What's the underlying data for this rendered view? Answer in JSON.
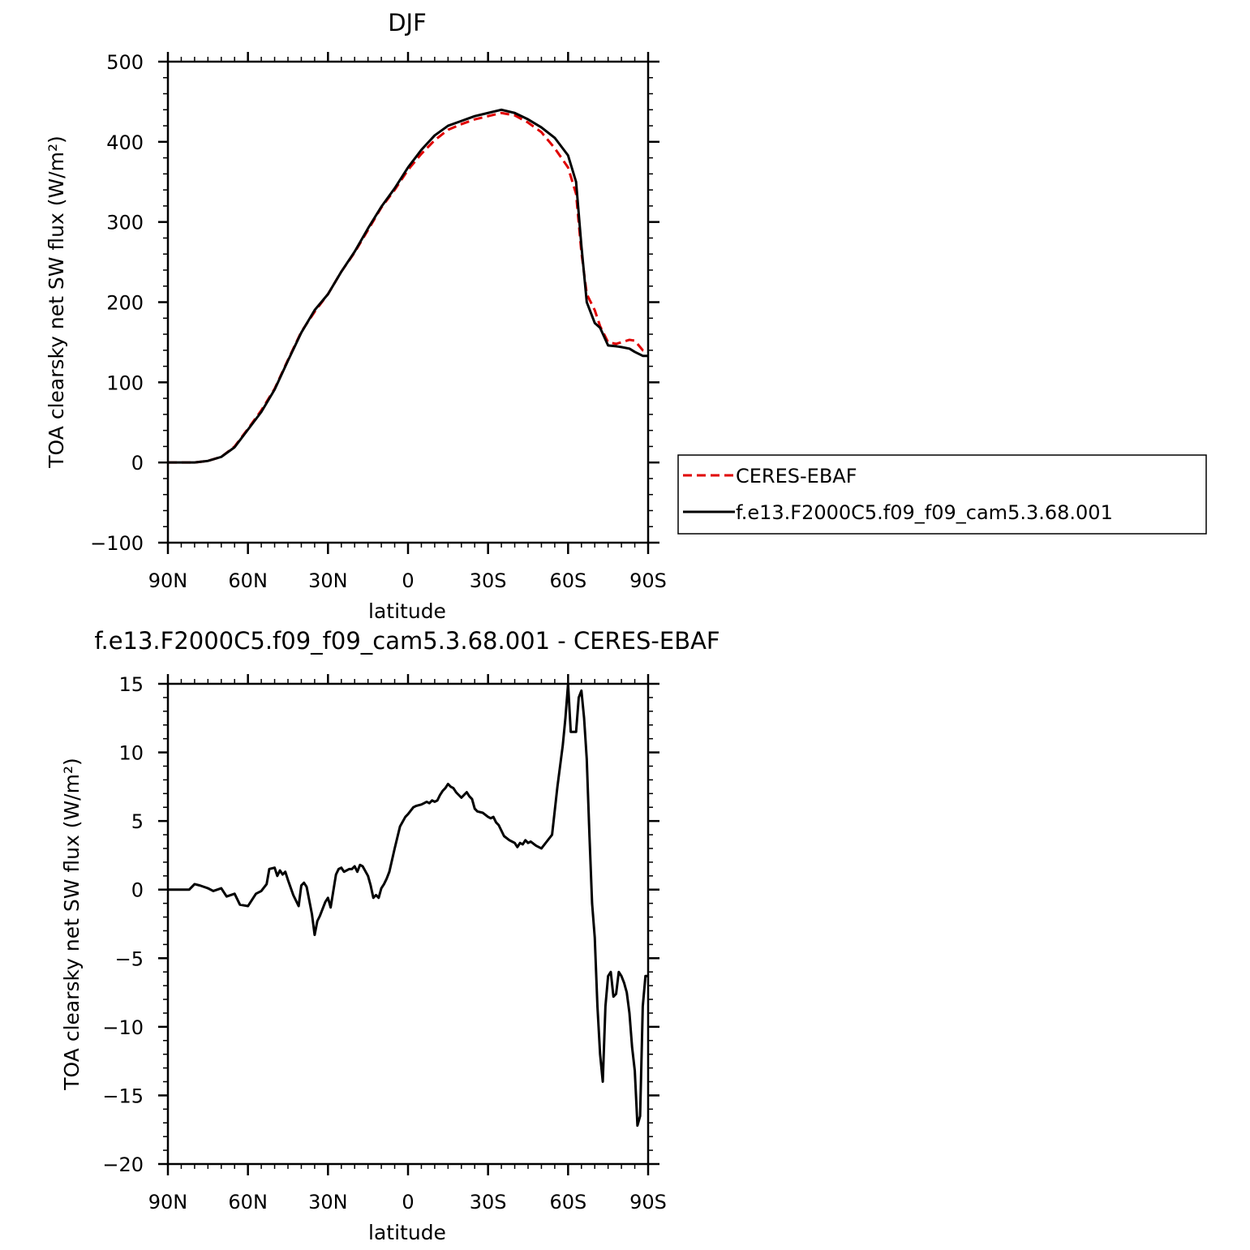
{
  "chart_data": [
    {
      "type": "line",
      "title": "DJF",
      "xlabel": "latitude",
      "ylabel": "TOA clearsky net SW flux (W/m²)",
      "ylim": [
        -100,
        500
      ],
      "yticks": [
        -100,
        0,
        100,
        200,
        300,
        400,
        500
      ],
      "xlim": [
        90,
        -90
      ],
      "xticks": [
        90,
        60,
        30,
        0,
        -30,
        -60,
        -90
      ],
      "xticklabels": [
        "90N",
        "60N",
        "30N",
        "0",
        "30S",
        "60S",
        "90S"
      ],
      "grid": false,
      "legend_position": "right",
      "x": [
        90,
        85,
        80,
        75,
        70,
        65,
        60,
        55,
        50,
        45,
        40,
        35,
        30,
        25,
        20,
        15,
        10,
        5,
        0,
        -5,
        -10,
        -15,
        -20,
        -25,
        -30,
        -35,
        -40,
        -45,
        -50,
        -55,
        -60,
        -63,
        -65,
        -67,
        -70,
        -72,
        -75,
        -78,
        -80,
        -83,
        -85,
        -88,
        -90
      ],
      "series": [
        {
          "name": "CERES-EBAF",
          "color": "#e00000",
          "dash": "dashed",
          "values": [
            0,
            0,
            0,
            2,
            7,
            20,
            42,
            65,
            92,
            128,
            163,
            188,
            210,
            238,
            262,
            290,
            318,
            340,
            365,
            385,
            402,
            415,
            422,
            428,
            432,
            436,
            433,
            424,
            412,
            392,
            368,
            335,
            262,
            210,
            190,
            170,
            150,
            148,
            150,
            153,
            152,
            140,
            138
          ]
        },
        {
          "name": "f.e13.F2000C5.f09_f09_cam5.3.68.001",
          "color": "#000000",
          "dash": "solid",
          "values": [
            0,
            0,
            0,
            2,
            7,
            19,
            41,
            63,
            91,
            127,
            162,
            190,
            210,
            238,
            263,
            292,
            319,
            342,
            368,
            390,
            408,
            420,
            426,
            432,
            436,
            440,
            436,
            428,
            418,
            405,
            383,
            350,
            270,
            200,
            174,
            168,
            146,
            145,
            144,
            142,
            138,
            133,
            133
          ]
        }
      ]
    },
    {
      "type": "line",
      "title": "f.e13.F2000C5.f09_f09_cam5.3.68.001 - CERES-EBAF",
      "xlabel": "latitude",
      "ylabel": "TOA clearsky net SW flux (W/m²)",
      "ylim": [
        -20,
        15
      ],
      "yticks": [
        -20,
        -15,
        -10,
        -5,
        0,
        5,
        10,
        15
      ],
      "xlim": [
        90,
        -90
      ],
      "xticks": [
        90,
        60,
        30,
        0,
        -30,
        -60,
        -90
      ],
      "xticklabels": [
        "90N",
        "60N",
        "30N",
        "0",
        "30S",
        "60S",
        "90S"
      ],
      "grid": false,
      "x": [
        90,
        85,
        82,
        80,
        78,
        75,
        73,
        70,
        68,
        65,
        63,
        60,
        57,
        55,
        53,
        52,
        50,
        49,
        48,
        47,
        46,
        45,
        43,
        41,
        40,
        39,
        38,
        36,
        35,
        34,
        33,
        31,
        30,
        29,
        28,
        27,
        26,
        25,
        24,
        22,
        21,
        20,
        19,
        18,
        17,
        15,
        14,
        13,
        12,
        11,
        10,
        9,
        8,
        7,
        5,
        3,
        1,
        0,
        -2,
        -3,
        -5,
        -6,
        -7,
        -8,
        -9,
        -10,
        -11,
        -12,
        -13,
        -14,
        -15,
        -16,
        -17,
        -18,
        -19,
        -20,
        -22,
        -23,
        -24,
        -25,
        -26,
        -28,
        -30,
        -31,
        -32,
        -33,
        -34,
        -36,
        -38,
        -39,
        -40,
        -41,
        -42,
        -43,
        -44,
        -45,
        -46,
        -48,
        -50,
        -52,
        -54,
        -56,
        -58,
        -59,
        -60,
        -61,
        -62,
        -63,
        -64,
        -65,
        -66,
        -67,
        -68,
        -69,
        -70,
        -71,
        -72,
        -73,
        -74,
        -75,
        -76,
        -77,
        -78,
        -79,
        -80,
        -81,
        -82,
        -83,
        -84,
        -85,
        -86,
        -87,
        -88,
        -89,
        -90
      ],
      "series": [
        {
          "name": "f.e13.F2000C5.f09_f09_cam5.3.68.001 - CERES-EBAF",
          "color": "#000000",
          "dash": "solid",
          "values": [
            0,
            0,
            0,
            0.4,
            0.3,
            0.1,
            -0.1,
            0.1,
            -0.5,
            -0.3,
            -1.1,
            -1.2,
            -0.3,
            -0.1,
            0.4,
            1.5,
            1.6,
            1.0,
            1.4,
            1.1,
            1.3,
            0.7,
            -0.4,
            -1.2,
            0.3,
            0.5,
            0.2,
            -1.8,
            -3.3,
            -2.3,
            -1.9,
            -0.9,
            -0.6,
            -1.3,
            -0.1,
            1.1,
            1.5,
            1.6,
            1.3,
            1.5,
            1.5,
            1.7,
            1.3,
            1.8,
            1.7,
            1.0,
            0.3,
            -0.6,
            -0.4,
            -0.6,
            0.1,
            0.4,
            0.8,
            1.3,
            3.0,
            4.6,
            5.3,
            5.5,
            6.0,
            6.1,
            6.2,
            6.3,
            6.4,
            6.3,
            6.5,
            6.4,
            6.5,
            6.9,
            7.2,
            7.4,
            7.7,
            7.5,
            7.4,
            7.1,
            6.9,
            6.7,
            7.1,
            6.8,
            6.6,
            5.9,
            5.7,
            5.6,
            5.3,
            5.2,
            5.3,
            4.9,
            4.7,
            3.9,
            3.6,
            3.5,
            3.4,
            3.1,
            3.4,
            3.3,
            3.6,
            3.4,
            3.5,
            3.2,
            3.0,
            3.5,
            4.0,
            7.5,
            10.5,
            12.5,
            15.0,
            11.5,
            11.5,
            11.5,
            14.0,
            14.5,
            12.5,
            9.5,
            4.0,
            -1.0,
            -3.5,
            -8.5,
            -12.0,
            -14.0,
            -8.5,
            -6.3,
            -6.0,
            -7.8,
            -7.6,
            -6.0,
            -6.3,
            -6.8,
            -7.5,
            -9.0,
            -11.5,
            -13.2,
            -17.2,
            -16.5,
            -8.5,
            -6.3,
            -6.3
          ]
        }
      ]
    }
  ]
}
